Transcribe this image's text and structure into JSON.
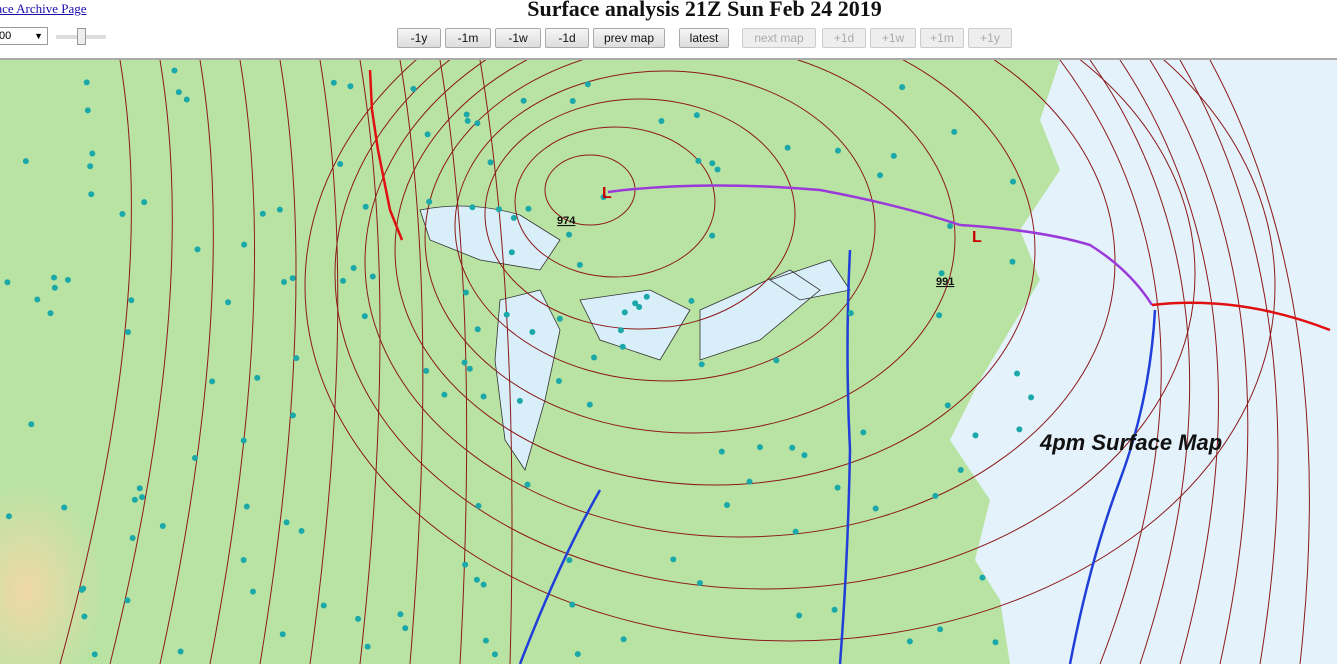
{
  "header": {
    "archive_link": "face Archive Page",
    "title": "Surface analysis 21Z Sun Feb 24 2019",
    "zoom_select_value": "00",
    "buttons": [
      {
        "label": "-1y",
        "enabled": true
      },
      {
        "label": "-1m",
        "enabled": true
      },
      {
        "label": "-1w",
        "enabled": true
      },
      {
        "label": "-1d",
        "enabled": true
      },
      {
        "label": "prev map",
        "enabled": true
      },
      {
        "label": "latest",
        "enabled": true
      },
      {
        "label": "next map",
        "enabled": false
      },
      {
        "label": "+1d",
        "enabled": false
      },
      {
        "label": "+1w",
        "enabled": false
      },
      {
        "label": "+1m",
        "enabled": false
      },
      {
        "label": "+1y",
        "enabled": false
      }
    ]
  },
  "map": {
    "caption": "4pm Surface Map",
    "lows": [
      {
        "symbol": "L",
        "pressure": "974"
      },
      {
        "symbol": "L",
        "pressure": "991"
      }
    ],
    "colors": {
      "land": "#b8e6a0",
      "ocean": "#e4f2fb",
      "isobar": "#8b1a1a",
      "cold_front": "#1f3fd8",
      "warm_front": "#e01010",
      "occluded_front": "#9a3ad8",
      "low": "#cc0000"
    }
  }
}
